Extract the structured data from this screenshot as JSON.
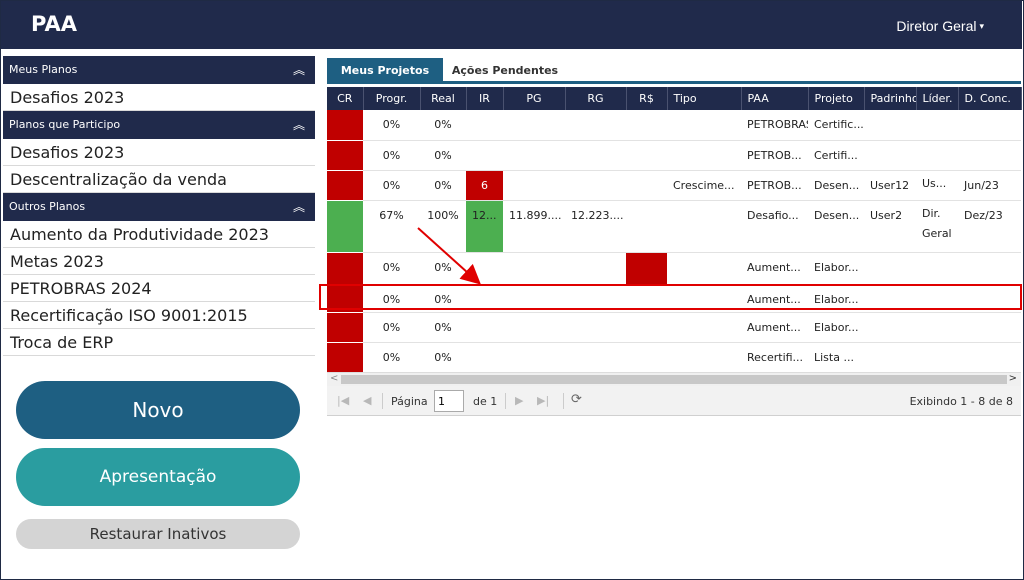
{
  "app": {
    "title": "PAA",
    "user_menu": "Diretor Geral",
    "caret": "▾"
  },
  "sidebar": {
    "sections": [
      {
        "title": "Meus Planos",
        "collapse_icon": "︽",
        "items": [
          "Desafios 2023"
        ]
      },
      {
        "title": "Planos que Participo",
        "collapse_icon": "︽",
        "items": [
          "Desafios 2023",
          "Descentralização da venda"
        ]
      },
      {
        "title": "Outros Planos",
        "collapse_icon": "︽",
        "items": [
          "Aumento da Produtividade 2023",
          "Metas 2023",
          "PETROBRAS 2024",
          "Recertificação ISO 9001:2015",
          "Troca de ERP"
        ]
      }
    ]
  },
  "buttons": {
    "novo": "Novo",
    "apresentacao": "Apresentação",
    "restaurar": "Restaurar Inativos"
  },
  "tabs": [
    {
      "label": "Meus Projetos",
      "active": true
    },
    {
      "label": "Ações Pendentes",
      "active": false
    }
  ],
  "grid": {
    "columns": [
      "CR",
      "Progr.",
      "Real",
      "IR",
      "PG",
      "RG",
      "R$",
      "Tipo",
      "PAA",
      "Projeto",
      "Padrinho",
      "Líder.",
      "D. Conc."
    ],
    "rows": [
      {
        "cr": "red",
        "progr": "0%",
        "real": "0%",
        "ir": "",
        "ir_color": "",
        "pg": "",
        "rg": "",
        "rs_color": "",
        "tipo": "",
        "paa": "PETROBRAS...",
        "projeto": "Certific...",
        "padrinho": "",
        "lider": "",
        "dconc": ""
      },
      {
        "cr": "red",
        "progr": "0%",
        "real": "0%",
        "ir": "",
        "ir_color": "",
        "pg": "",
        "rg": "",
        "rs_color": "",
        "tipo": "",
        "paa": "PETROB...",
        "projeto": "Certifi...",
        "padrinho": "",
        "lider": "",
        "dconc": ""
      },
      {
        "cr": "red",
        "progr": "0%",
        "real": "0%",
        "ir": "6",
        "ir_color": "red",
        "pg": "",
        "rg": "",
        "rs_color": "",
        "tipo": "Crescime...",
        "paa": "PETROB...",
        "projeto": "Desen...",
        "padrinho": "User12",
        "lider": "Us...",
        "dconc": "Jun/23"
      },
      {
        "cr": "green",
        "progr": "67%",
        "real": "100%",
        "ir": "12...",
        "ir_color": "green",
        "pg": "11.899....",
        "rg": "12.223....",
        "rs_color": "",
        "tipo": "",
        "paa": "Desafio...",
        "projeto": "Desen...",
        "padrinho": "User2",
        "lider": "Dir. Geral",
        "dconc": "Dez/23"
      },
      {
        "cr": "red",
        "progr": "0%",
        "real": "0%",
        "ir": "",
        "ir_color": "",
        "pg": "",
        "rg": "",
        "rs_color": "red",
        "tipo": "",
        "paa": "Aument...",
        "projeto": "Elabor...",
        "padrinho": "",
        "lider": "",
        "dconc": ""
      },
      {
        "cr": "red",
        "progr": "0%",
        "real": "0%",
        "ir": "",
        "ir_color": "",
        "pg": "",
        "rg": "",
        "rs_color": "",
        "tipo": "",
        "paa": "Aument...",
        "projeto": "Elabor...",
        "padrinho": "",
        "lider": "",
        "dconc": ""
      },
      {
        "cr": "red",
        "progr": "0%",
        "real": "0%",
        "ir": "",
        "ir_color": "",
        "pg": "",
        "rg": "",
        "rs_color": "",
        "tipo": "",
        "paa": "Aument...",
        "projeto": "Elabor...",
        "padrinho": "",
        "lider": "",
        "dconc": ""
      },
      {
        "cr": "red",
        "progr": "0%",
        "real": "0%",
        "ir": "",
        "ir_color": "",
        "pg": "",
        "rg": "",
        "rs_color": "",
        "tipo": "",
        "paa": "Recertifi...",
        "projeto": "Lista ...",
        "padrinho": "",
        "lider": "",
        "dconc": ""
      }
    ]
  },
  "pager": {
    "pagina_label": "Página",
    "page": "1",
    "de_label": "de 1",
    "info": "Exibindo 1 - 8 de 8"
  },
  "colors": {
    "navy": "#202a4b",
    "blue": "#1e5f82",
    "teal": "#2a9da0",
    "red": "#c00000",
    "green": "#4caf50",
    "annotation": "#e00000"
  }
}
